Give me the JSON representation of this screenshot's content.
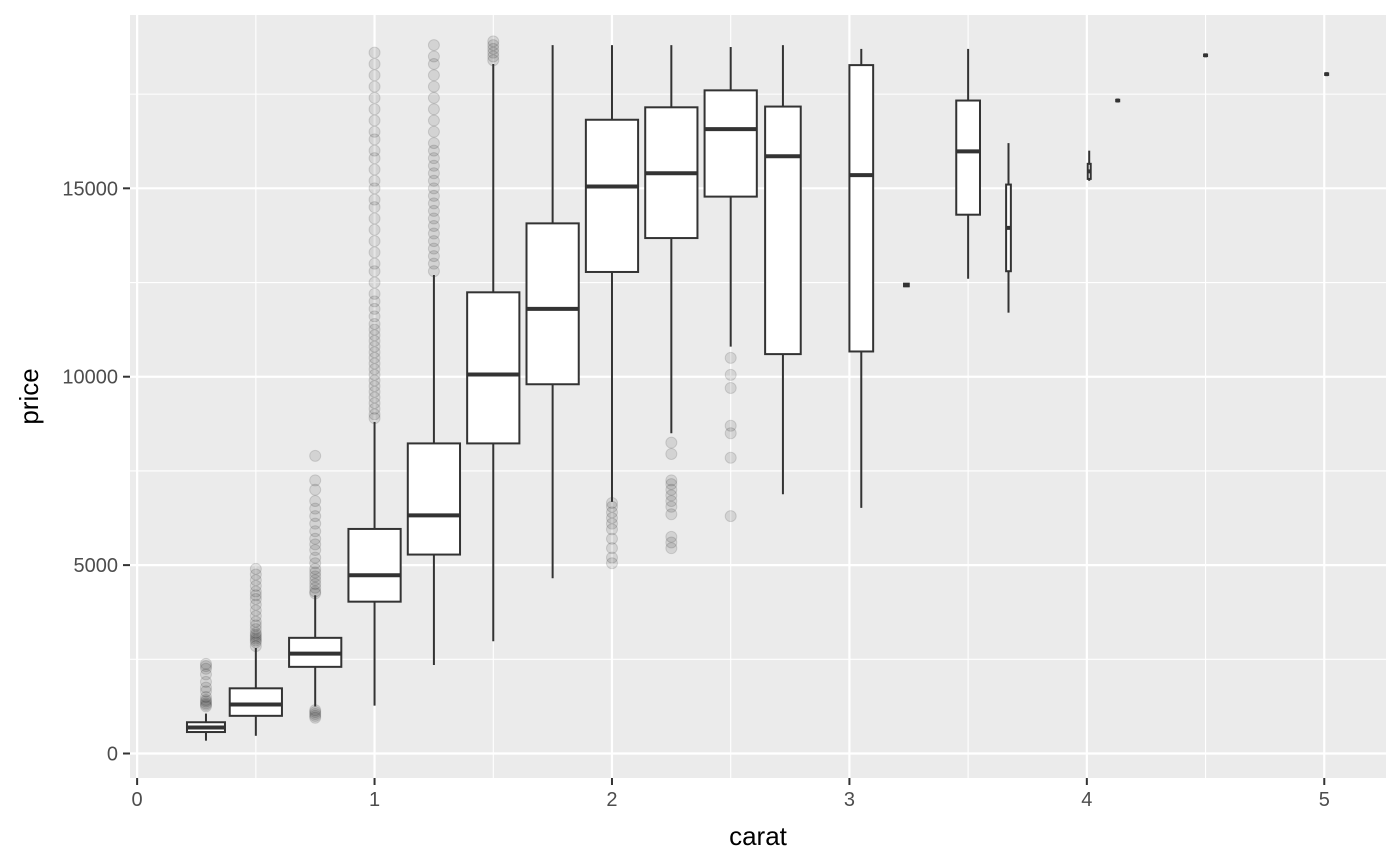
{
  "chart_data": {
    "type": "boxplot",
    "title": "",
    "xlabel": "carat",
    "ylabel": "price",
    "xlim": [
      -0.03,
      5.26
    ],
    "ylim": [
      -650,
      19600
    ],
    "x_ticks": [
      0,
      1,
      2,
      3,
      4,
      5
    ],
    "x_minor_ticks": [
      0.5,
      1.5,
      2.5,
      3.5,
      4.5
    ],
    "y_ticks": [
      0,
      5000,
      10000,
      15000
    ],
    "y_minor_ticks": [
      2500,
      7500,
      12500,
      17500
    ],
    "grid": true,
    "legend": "none",
    "colors": {
      "panel": "#ebebeb",
      "grid": "#ffffff",
      "box_line": "#333333",
      "outlier": "#000000"
    },
    "groups": [
      {
        "x": 0.29,
        "width": 0.16,
        "lower_whisker": 340,
        "q1": 570,
        "median": 690,
        "q3": 830,
        "upper_whisker": 1060,
        "outliers": [
          1250,
          1290,
          1330,
          1380,
          1420,
          1500,
          1650,
          1750,
          1900,
          2100,
          2250,
          2320,
          2380
        ]
      },
      {
        "x": 0.5,
        "width": 0.22,
        "lower_whisker": 470,
        "q1": 1000,
        "median": 1300,
        "q3": 1730,
        "upper_whisker": 2800,
        "outliers": [
          2850,
          2950,
          3000,
          3050,
          3100,
          3150,
          3200,
          3300,
          3400,
          3500,
          3650,
          3800,
          3950,
          4100,
          4200,
          4300,
          4450,
          4600,
          4750,
          4900
        ]
      },
      {
        "x": 0.75,
        "width": 0.22,
        "lower_whisker": 1250,
        "q1": 2300,
        "median": 2650,
        "q3": 3070,
        "upper_whisker": 4200,
        "outliers": [
          950,
          1000,
          1050,
          1100,
          1150,
          4250,
          4300,
          4400,
          4500,
          4600,
          4700,
          4800,
          4900,
          5050,
          5200,
          5400,
          5550,
          5700,
          5900,
          6100,
          6300,
          6500,
          6700,
          7000,
          7250,
          7900
        ]
      },
      {
        "x": 1.0,
        "width": 0.22,
        "lower_whisker": 1270,
        "q1": 4030,
        "median": 4730,
        "q3": 5960,
        "upper_whisker": 8800,
        "outliers": [
          8900,
          9000,
          9150,
          9300,
          9450,
          9600,
          9750,
          9900,
          10050,
          10200,
          10350,
          10500,
          10650,
          10800,
          10950,
          11100,
          11250,
          11400,
          11600,
          11800,
          12000,
          12200,
          12500,
          12800,
          13000,
          13300,
          13600,
          13900,
          14200,
          14500,
          14700,
          15000,
          15200,
          15500,
          15800,
          16000,
          16300,
          16500,
          16800,
          17100,
          17400,
          17700,
          18000,
          18300,
          18600
        ]
      },
      {
        "x": 1.25,
        "width": 0.22,
        "lower_whisker": 2350,
        "q1": 5280,
        "median": 6320,
        "q3": 8230,
        "upper_whisker": 12700,
        "outliers": [
          12800,
          13000,
          13200,
          13400,
          13600,
          13800,
          14000,
          14200,
          14400,
          14600,
          14800,
          15000,
          15200,
          15400,
          15600,
          15800,
          16000,
          16200,
          16500,
          16800,
          17100,
          17400,
          17700,
          18000,
          18300,
          18500,
          18800
        ]
      },
      {
        "x": 1.5,
        "width": 0.22,
        "lower_whisker": 2980,
        "q1": 8230,
        "median": 10060,
        "q3": 12240,
        "upper_whisker": 18300,
        "outliers": [
          18400,
          18500,
          18600,
          18700,
          18800,
          18900
        ]
      },
      {
        "x": 1.75,
        "width": 0.22,
        "lower_whisker": 4650,
        "q1": 9800,
        "median": 11800,
        "q3": 14070,
        "upper_whisker": 18800,
        "outliers": []
      },
      {
        "x": 2.0,
        "width": 0.22,
        "lower_whisker": 6680,
        "q1": 12780,
        "median": 15050,
        "q3": 16820,
        "upper_whisker": 18800,
        "outliers": [
          5050,
          5200,
          5450,
          5700,
          5950,
          6100,
          6250,
          6400,
          6550,
          6650
        ]
      },
      {
        "x": 2.25,
        "width": 0.22,
        "lower_whisker": 8500,
        "q1": 13680,
        "median": 15400,
        "q3": 17150,
        "upper_whisker": 18800,
        "outliers": [
          5450,
          5600,
          5750,
          6350,
          6550,
          6700,
          6850,
          7000,
          7150,
          7250,
          7950,
          8250
        ]
      },
      {
        "x": 2.5,
        "width": 0.22,
        "lower_whisker": 10800,
        "q1": 14780,
        "median": 16570,
        "q3": 17600,
        "upper_whisker": 18750,
        "outliers": [
          6300,
          7850,
          8500,
          8700,
          9700,
          10050,
          10500
        ]
      },
      {
        "x": 2.72,
        "width": 0.15,
        "lower_whisker": 6880,
        "q1": 10600,
        "median": 15850,
        "q3": 17170,
        "upper_whisker": 18800,
        "outliers": []
      },
      {
        "x": 3.05,
        "width": 0.1,
        "lower_whisker": 6520,
        "q1": 10670,
        "median": 15350,
        "q3": 18270,
        "upper_whisker": 18700,
        "outliers": []
      },
      {
        "x": 3.24,
        "width": 0.02,
        "lower_whisker": 12400,
        "q1": 12400,
        "median": 12430,
        "q3": 12470,
        "upper_whisker": 12480,
        "outliers": []
      },
      {
        "x": 3.5,
        "width": 0.1,
        "lower_whisker": 12600,
        "q1": 14300,
        "median": 15980,
        "q3": 17330,
        "upper_whisker": 18700,
        "outliers": []
      },
      {
        "x": 3.67,
        "width": 0.02,
        "lower_whisker": 11700,
        "q1": 12800,
        "median": 13950,
        "q3": 15100,
        "upper_whisker": 16200,
        "outliers": []
      },
      {
        "x": 4.01,
        "width": 0.012,
        "lower_whisker": 15200,
        "q1": 15250,
        "median": 15450,
        "q3": 15650,
        "upper_whisker": 16000,
        "outliers": []
      },
      {
        "x": 4.13,
        "width": 0.006,
        "lower_whisker": 17300,
        "q1": 17310,
        "median": 17330,
        "q3": 17350,
        "upper_whisker": 17360,
        "outliers": []
      },
      {
        "x": 4.5,
        "width": 0.006,
        "lower_whisker": 18500,
        "q1": 18510,
        "median": 18530,
        "q3": 18550,
        "upper_whisker": 18560,
        "outliers": []
      },
      {
        "x": 5.01,
        "width": 0.006,
        "lower_whisker": 18000,
        "q1": 18010,
        "median": 18030,
        "q3": 18050,
        "upper_whisker": 18060,
        "outliers": []
      }
    ]
  }
}
